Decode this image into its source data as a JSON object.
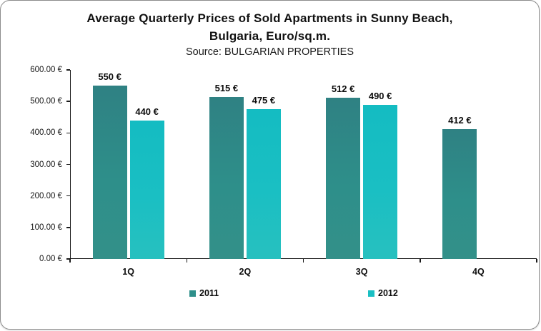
{
  "chart_data": {
    "type": "bar",
    "title_line1": "Average Quarterly Prices of Sold Apartments in Sunny Beach,",
    "title_line2": "Bulgaria, Euro/sq.m.",
    "subtitle": "Source: BULGARIAN PROPERTIES",
    "categories": [
      "1Q",
      "2Q",
      "3Q",
      "4Q"
    ],
    "series": [
      {
        "name": "2011",
        "color": "#2E8F8A",
        "values": [
          550,
          515,
          512,
          412
        ],
        "labels": [
          "550 €",
          "515 €",
          "512 €",
          "412 €"
        ]
      },
      {
        "name": "2012",
        "color": "#1ABFC3",
        "values": [
          440,
          475,
          490,
          null
        ],
        "labels": [
          "440 €",
          "475 €",
          "490 €",
          null
        ]
      }
    ],
    "ylabel": "",
    "xlabel": "",
    "ylim": [
      0,
      600
    ],
    "ytick_step": 100,
    "ytick_labels": [
      "0.00 €",
      "100.00 €",
      "200.00 €",
      "300.00 €",
      "400.00 €",
      "500.00 €",
      "600.00 €"
    ],
    "grid": false,
    "legend_position": "bottom"
  }
}
